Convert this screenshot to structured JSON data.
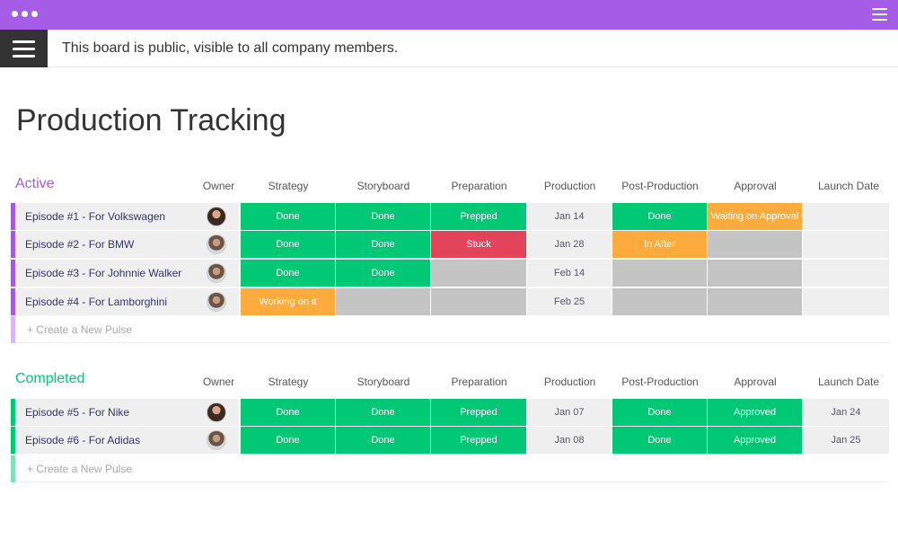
{
  "header": {
    "info_text": "This board is public, visible to all company members."
  },
  "board": {
    "title": "Production Tracking"
  },
  "columns": [
    "Owner",
    "Strategy",
    "Storyboard",
    "Preparation",
    "Production",
    "Post-Production",
    "Approval",
    "Launch Date"
  ],
  "colors": {
    "purple": "#a55de8",
    "green": "#00c875",
    "red": "#e2445c",
    "orange": "#fdab3d",
    "grey": "#c4c4c4",
    "active": "#a25ddc",
    "completed": "#00c875"
  },
  "groups": [
    {
      "title": "Active",
      "create_label": "+ Create a New Pulse",
      "rows": [
        {
          "name": "Episode #1 - For Volkswagen",
          "strategy": "Done",
          "storyboard": "Done",
          "preparation": "Prepped",
          "production": "Jan 14",
          "post_production": "Done",
          "approval": "Waiting on Approval",
          "launch_date": ""
        },
        {
          "name": "Episode #2 - For BMW",
          "strategy": "Done",
          "storyboard": "Done",
          "preparation": "Stuck",
          "production": "Jan 28",
          "post_production": "In After",
          "approval": "",
          "launch_date": ""
        },
        {
          "name": "Episode #3 - For Johnnie Walker",
          "strategy": "Done",
          "storyboard": "Done",
          "preparation": "",
          "production": "Feb 14",
          "post_production": "",
          "approval": "",
          "launch_date": ""
        },
        {
          "name": "Episode #4 - For Lamborghini",
          "strategy": "Working on it",
          "storyboard": "",
          "preparation": "",
          "production": "Feb 25",
          "post_production": "",
          "approval": "",
          "launch_date": ""
        }
      ]
    },
    {
      "title": "Completed",
      "create_label": "+ Create a New Pulse",
      "rows": [
        {
          "name": "Episode #5 - For Nike",
          "strategy": "Done",
          "storyboard": "Done",
          "preparation": "Prepped",
          "production": "Jan 07",
          "post_production": "Done",
          "approval": "Approved",
          "launch_date": "Jan 24"
        },
        {
          "name": "Episode #6 - For Adidas",
          "strategy": "Done",
          "storyboard": "Done",
          "preparation": "Prepped",
          "production": "Jan 08",
          "post_production": "Done",
          "approval": "Approved",
          "launch_date": "Jan 25"
        }
      ]
    }
  ]
}
